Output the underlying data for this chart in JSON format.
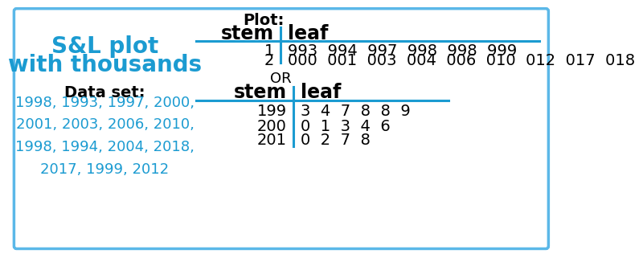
{
  "title_left_line1": "S&L plot",
  "title_left_line2": "with thousands",
  "dataset_label": "Data set:",
  "dataset_values": "1998, 1993, 1997, 2000,\n2001, 2003, 2006, 2010,\n1998, 1994, 2004, 2018,\n2017, 1999, 2012",
  "plot_label": "Plot:",
  "or_label": "OR",
  "table1_header_stem": "stem",
  "table1_header_leaf": "leaf",
  "table1_rows": [
    {
      "stem": "1",
      "leaf": "993  994  997  998  998  999"
    },
    {
      "stem": "2",
      "leaf": "000  001  003  004  006  010  012  017  018"
    }
  ],
  "table2_header_stem": "stem",
  "table2_header_leaf": "leaf",
  "table2_rows": [
    {
      "stem": "199",
      "leaf": "3  4  7  8  8  9"
    },
    {
      "stem": "200",
      "leaf": "0  1  3  4  6"
    },
    {
      "stem": "201",
      "leaf": "0  2  7  8"
    }
  ],
  "left_title_color": "#1B9BD1",
  "dataset_color": "#1B9BD1",
  "black_color": "#000000",
  "border_color": "#5BB8E8",
  "background_color": "#FFFFFF",
  "line_color": "#1B9BD1",
  "font_size_title": 20,
  "font_size_data": 13,
  "font_size_table_header": 17,
  "font_size_table_data": 14,
  "font_size_plot_label": 14,
  "font_size_or": 13
}
